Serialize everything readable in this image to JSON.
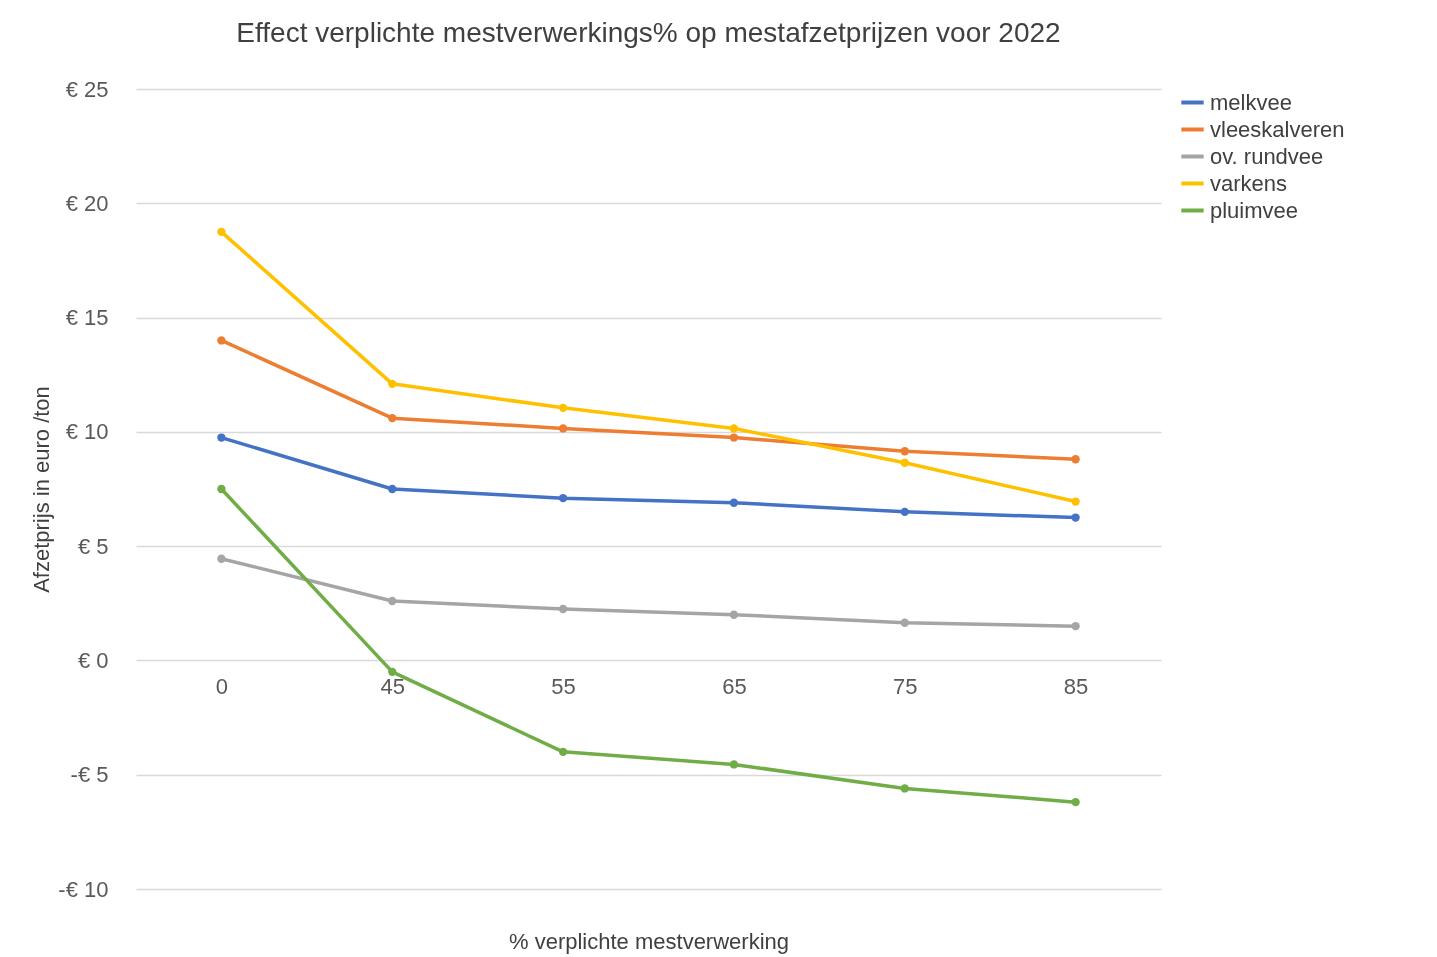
{
  "chart_data": {
    "type": "line",
    "title": "Effect verplichte mestverwerkings% op mestafzetprijzen voor 2022",
    "xlabel": "% verplichte mestverwerking",
    "ylabel": "Afzetprijs in euro /ton",
    "categories": [
      "0",
      "45",
      "55",
      "65",
      "75",
      "85"
    ],
    "series": [
      {
        "name": "melkvee",
        "color": "#4472c4",
        "values": [
          9.75,
          7.5,
          7.1,
          6.9,
          6.5,
          6.25
        ]
      },
      {
        "name": "vleeskalveren",
        "color": "#ed7d31",
        "values": [
          14.0,
          10.6,
          10.15,
          9.75,
          9.15,
          8.8
        ]
      },
      {
        "name": "ov. rundvee",
        "color": "#a5a5a5",
        "values": [
          4.45,
          2.6,
          2.25,
          2.0,
          1.65,
          1.5
        ]
      },
      {
        "name": "varkens",
        "color": "#ffc000",
        "values": [
          18.75,
          12.1,
          11.05,
          10.15,
          8.65,
          6.95
        ]
      },
      {
        "name": "pluimvee",
        "color": "#70ad47",
        "values": [
          7.5,
          -0.5,
          -4.0,
          -4.55,
          -5.6,
          -6.2
        ]
      }
    ],
    "ylim": [
      -10,
      25
    ],
    "yticks": [
      {
        "value": -10,
        "label": "-€ 10"
      },
      {
        "value": -5,
        "label": "-€ 5"
      },
      {
        "value": 0,
        "label": "€ 0"
      },
      {
        "value": 5,
        "label": "€ 5"
      },
      {
        "value": 10,
        "label": "€ 10"
      },
      {
        "value": 15,
        "label": "€ 15"
      },
      {
        "value": 20,
        "label": "€ 20"
      },
      {
        "value": 25,
        "label": "€ 25"
      }
    ],
    "grid": "y",
    "legend": "right",
    "marker": "circle",
    "line_style": "solid"
  }
}
